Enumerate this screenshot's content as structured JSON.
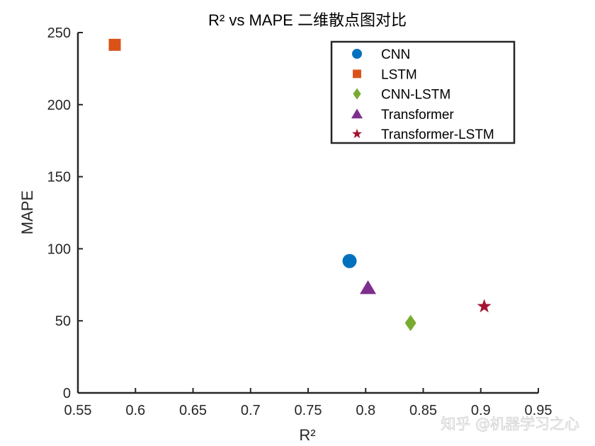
{
  "chart_data": {
    "type": "scatter",
    "title": "R² vs MAPE 二维散点图对比",
    "xlabel": "R²",
    "ylabel": "MAPE",
    "xlim": [
      0.55,
      0.95
    ],
    "ylim": [
      0,
      250
    ],
    "xticks": [
      0.55,
      0.6,
      0.65,
      0.7,
      0.75,
      0.8,
      0.85,
      0.9,
      0.95
    ],
    "xtick_labels": [
      "0.55",
      "0.6",
      "0.65",
      "0.7",
      "0.75",
      "0.8",
      "0.85",
      "0.9",
      "0.95"
    ],
    "yticks": [
      0,
      50,
      100,
      150,
      200,
      250
    ],
    "ytick_labels": [
      "0",
      "50",
      "100",
      "150",
      "200",
      "250"
    ],
    "grid": false,
    "legend_position": "top-right",
    "series": [
      {
        "name": "CNN",
        "marker": "circle",
        "color": "#0072BD",
        "x": 0.786,
        "y": 91.5
      },
      {
        "name": "LSTM",
        "marker": "square",
        "color": "#D95319",
        "x": 0.582,
        "y": 241.5
      },
      {
        "name": "CNN-LSTM",
        "marker": "diamond",
        "color": "#77AC30",
        "x": 0.839,
        "y": 48.5
      },
      {
        "name": "Transformer",
        "marker": "triangle",
        "color": "#7E2F8E",
        "x": 0.802,
        "y": 73.0
      },
      {
        "name": "Transformer-LSTM",
        "marker": "star",
        "color": "#A2142F",
        "x": 0.903,
        "y": 60.0
      }
    ]
  },
  "watermark": "知乎 @机器学习之心"
}
